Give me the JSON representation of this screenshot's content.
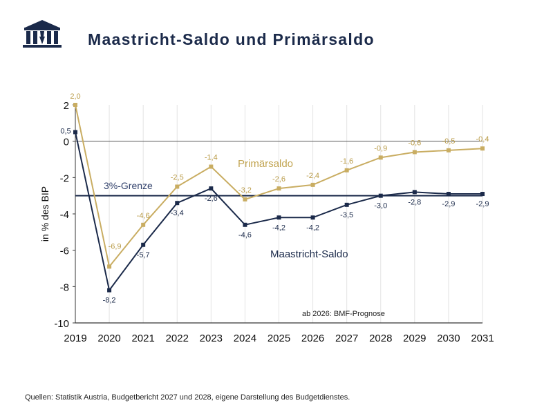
{
  "header": {
    "title": "Maastricht-Saldo und Primärsaldo"
  },
  "footer": {
    "source": "Quellen: Statistik Austria, Budgetbericht 2027 und 2028, eigene Darstellung des Budgetdienstes."
  },
  "chart_data": {
    "type": "line",
    "title": "Maastricht-Saldo und Primärsaldo",
    "ylabel": "in % des BIP",
    "xlabel": "",
    "ylim": [
      -10,
      2
    ],
    "yticks": [
      2,
      0,
      -2,
      -4,
      -6,
      -8,
      -10
    ],
    "ytick_labels": [
      "2",
      "0",
      "-2",
      "-4",
      "-6",
      "-8",
      "-10"
    ],
    "x": [
      "2019",
      "2020",
      "2021",
      "2022",
      "2023",
      "2024",
      "2025",
      "2026",
      "2027",
      "2028",
      "2029",
      "2030",
      "2031"
    ],
    "grid": "vertical",
    "series": [
      {
        "name": "Primärsaldo",
        "color": "#c9ad62",
        "values": [
          2.0,
          -6.9,
          -4.6,
          -2.5,
          -1.4,
          -3.2,
          -2.6,
          -2.4,
          -1.6,
          -0.9,
          -0.6,
          -0.5,
          -0.4
        ],
        "labels": [
          "2,0",
          "-6,9",
          "-4,6",
          "-2,5",
          "-1,4",
          "-3,2",
          "-2,6",
          "-2,4",
          "-1,6",
          "-0,9",
          "-0,6",
          "-0,5",
          "-0,4"
        ]
      },
      {
        "name": "Maastricht-Saldo",
        "color": "#1b2a4a",
        "values": [
          0.5,
          -8.2,
          -5.7,
          -3.4,
          -2.6,
          -4.6,
          -4.2,
          -4.2,
          -3.5,
          -3.0,
          -2.8,
          -2.9,
          -2.9
        ],
        "labels": [
          "0,5",
          "-8,2",
          "-5,7",
          "-3,4",
          "-2,6",
          "-4,6",
          "-4,2",
          "-4,2",
          "-3,5",
          "-3,0",
          "-2,8",
          "-2,9",
          "-2,9"
        ]
      }
    ],
    "reference_line": {
      "label": "3%-Grenze",
      "value": -3.0,
      "color": "#1b2a4a"
    },
    "annotations": [
      {
        "text": "ab 2026: BMF-Prognose"
      }
    ]
  }
}
